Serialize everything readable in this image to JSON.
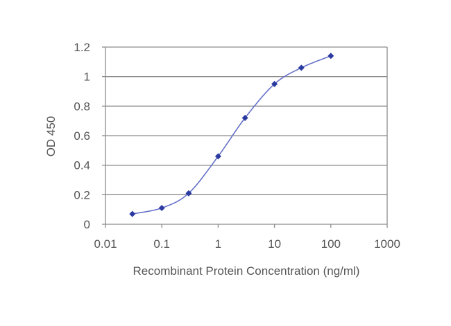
{
  "chart_data": {
    "type": "line",
    "title": "",
    "xlabel": "Recombinant Protein Concentration (ng/ml)",
    "ylabel": "OD 450",
    "x_scale": "log",
    "xlim": [
      0.01,
      1000
    ],
    "ylim": [
      0,
      1.2
    ],
    "x_ticks": [
      "0.01",
      "0.1",
      "1",
      "10",
      "100",
      "1000"
    ],
    "y_ticks": [
      "0",
      "0.2",
      "0.4",
      "0.6",
      "0.8",
      "1",
      "1.2"
    ],
    "grid": "horizontal",
    "legend": "none",
    "series": [
      {
        "x": [
          0.03,
          0.1,
          0.3,
          1,
          3,
          10,
          30,
          100
        ],
        "y": [
          0.07,
          0.11,
          0.21,
          0.46,
          0.72,
          0.95,
          1.06,
          1.14
        ],
        "color": "#2a3aa0",
        "marker": "diamond"
      }
    ]
  }
}
